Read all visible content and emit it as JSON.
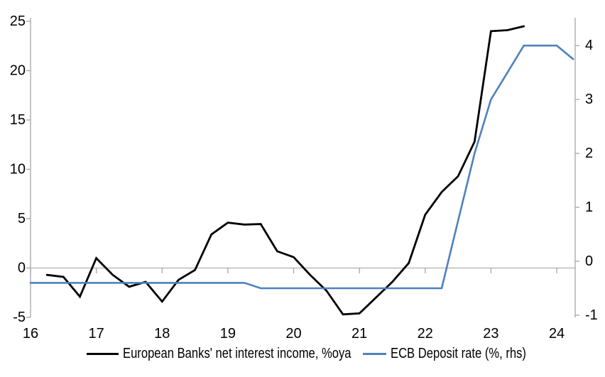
{
  "figure": {
    "background": "#ffffff",
    "axis_color": "#a6a6a6",
    "gridline_color": "#b0b0b0",
    "label_color": "#000000"
  },
  "chart_data": {
    "type": "line",
    "title": "",
    "xlabel": "",
    "ylabel": "",
    "x_axis": {
      "range": [
        16,
        24.28
      ],
      "ticks": [
        16,
        17,
        18,
        19,
        20,
        21,
        22,
        23,
        24
      ],
      "tick_labels": [
        "16",
        "17",
        "18",
        "19",
        "20",
        "21",
        "22",
        "23",
        "24"
      ]
    },
    "left_axis": {
      "range": [
        -5,
        25
      ],
      "ticks": [
        25,
        20,
        15,
        10,
        5,
        0,
        -5
      ],
      "tick_labels": [
        "25",
        "20",
        "15",
        "10",
        "5",
        "0",
        "-5"
      ],
      "zero_gridline": true
    },
    "right_axis": {
      "range": [
        -1.04,
        4.45
      ],
      "ticks": [
        4,
        3,
        2,
        1,
        0,
        -1
      ],
      "tick_labels": [
        "4",
        "3",
        "2",
        "1",
        "0",
        "-1"
      ]
    },
    "grid": "zero-line-only",
    "legend_position": "bottom",
    "series": [
      {
        "name": "European Banks' net interest income, %oya",
        "axis": "left",
        "color": "#000000",
        "stroke_width": 2.8,
        "x": [
          16.25,
          16.5,
          16.75,
          17.0,
          17.25,
          17.5,
          17.75,
          18.0,
          18.25,
          18.5,
          18.75,
          19.0,
          19.25,
          19.5,
          19.75,
          20.0,
          20.25,
          20.5,
          20.75,
          21.0,
          21.25,
          21.5,
          21.75,
          22.0,
          22.25,
          22.5,
          22.75,
          23.0,
          23.25,
          23.5
        ],
        "values": [
          -0.7,
          -0.9,
          -2.9,
          1.0,
          -0.7,
          -1.9,
          -1.4,
          -3.4,
          -1.2,
          -0.2,
          3.4,
          4.6,
          4.4,
          4.45,
          1.7,
          1.1,
          -0.7,
          -2.3,
          -4.7,
          -4.6,
          -3.0,
          -1.4,
          0.5,
          5.4,
          7.7,
          9.3,
          12.8,
          24.0,
          24.1,
          24.5
        ]
      },
      {
        "name": "ECB Deposit rate (%, rhs)",
        "axis": "right",
        "color": "#4e81bd",
        "stroke_width": 2.6,
        "x": [
          16.0,
          16.25,
          16.5,
          16.75,
          17.0,
          17.25,
          17.5,
          17.75,
          18.0,
          18.25,
          18.5,
          18.75,
          19.0,
          19.25,
          19.5,
          19.75,
          20.0,
          20.25,
          20.5,
          20.75,
          21.0,
          21.25,
          21.5,
          21.75,
          22.0,
          22.25,
          22.5,
          22.75,
          23.0,
          23.25,
          23.5,
          23.75,
          24.0,
          24.25
        ],
        "values": [
          -0.4,
          -0.4,
          -0.4,
          -0.4,
          -0.4,
          -0.4,
          -0.4,
          -0.4,
          -0.4,
          -0.4,
          -0.4,
          -0.4,
          -0.4,
          -0.4,
          -0.5,
          -0.5,
          -0.5,
          -0.5,
          -0.5,
          -0.5,
          -0.5,
          -0.5,
          -0.5,
          -0.5,
          -0.5,
          -0.5,
          0.75,
          2.0,
          3.0,
          3.5,
          4.0,
          4.0,
          4.0,
          3.75
        ]
      }
    ]
  }
}
